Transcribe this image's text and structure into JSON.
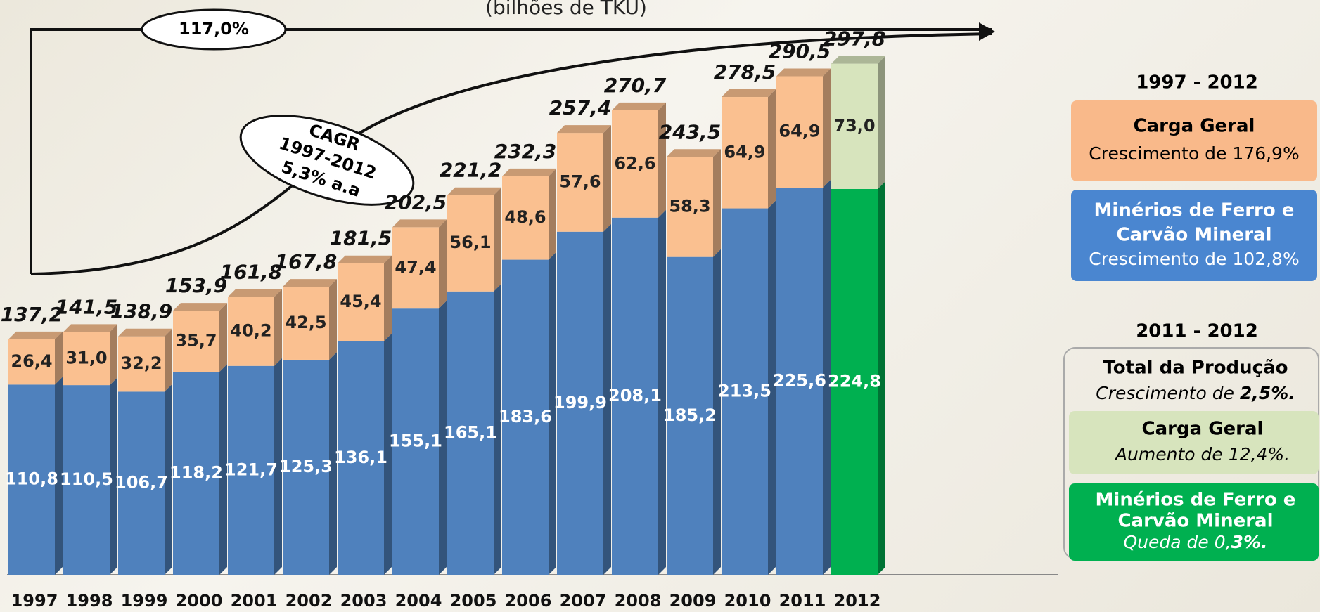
{
  "chart_data": {
    "type": "bar",
    "stacked": true,
    "subtitle": "(bilhões de TKU)",
    "categories": [
      "1997",
      "1998",
      "1999",
      "2000",
      "2001",
      "2002",
      "2003",
      "2004",
      "2005",
      "2006",
      "2007",
      "2008",
      "2009",
      "2010",
      "2011",
      "2012"
    ],
    "series": [
      {
        "colors": [
          "#4f81bd",
          "#4f81bd",
          "#4f81bd",
          "#4f81bd",
          "#4f81bd",
          "#4f81bd",
          "#4f81bd",
          "#4f81bd",
          "#4f81bd",
          "#4f81bd",
          "#4f81bd",
          "#4f81bd",
          "#4f81bd",
          "#4f81bd",
          "#4f81bd",
          "#00b050"
        ],
        "values": [
          110.8,
          110.5,
          106.7,
          118.2,
          121.7,
          125.3,
          136.1,
          155.1,
          165.1,
          183.6,
          199.9,
          208.1,
          185.2,
          213.5,
          225.6,
          224.8
        ],
        "value_labels": [
          "110,8",
          "110,5",
          "106,7",
          "118,2",
          "121,7",
          "125,3",
          "136,1",
          "155,1",
          "165,1",
          "183,6",
          "199,9",
          "208,1",
          "185,2",
          "213,5",
          "225,6",
          "224,8"
        ]
      },
      {
        "colors": [
          "#fac090",
          "#fac090",
          "#fac090",
          "#fac090",
          "#fac090",
          "#fac090",
          "#fac090",
          "#fac090",
          "#fac090",
          "#fac090",
          "#fac090",
          "#fac090",
          "#fac090",
          "#fac090",
          "#fac090",
          "#d7e4bd"
        ],
        "values": [
          26.4,
          31.0,
          32.2,
          35.7,
          40.2,
          42.5,
          45.4,
          47.4,
          56.1,
          48.6,
          57.6,
          62.6,
          58.3,
          64.9,
          64.9,
          73.0
        ],
        "value_labels": [
          "26,4",
          "31,0",
          "32,2",
          "35,7",
          "40,2",
          "42,5",
          "45,4",
          "47,4",
          "56,1",
          "48,6",
          "57,6",
          "62,6",
          "58,3",
          "64,9",
          "64,9",
          "73,0"
        ]
      }
    ],
    "total_labels": [
      "137,2",
      "141,5",
      "138,9",
      "153,9",
      "161,8",
      "167,8",
      "181,5",
      "202,5",
      "221,2",
      "232,3",
      "257,4",
      "270,7",
      "243,5",
      "278,5",
      "290,5",
      "297,8"
    ],
    "ylim": [
      0,
      330
    ],
    "annotations": [
      "117,0%",
      "CAGR",
      "1997-2012",
      "5,3% a.a"
    ]
  },
  "panels": [
    {
      "heading": "1997 - 2012"
    },
    {
      "title": "Carga Geral",
      "text": "Crescimento de 176,9%"
    },
    {
      "title": "Minérios de Ferro e",
      "title2": "Carvão Mineral",
      "text": "Crescimento de 102,8%"
    },
    {
      "heading": "2011 - 2012"
    },
    {
      "title": "Total da Produção",
      "text": "Crescimento de ",
      "strong": "2,5%."
    },
    {
      "title": "Carga Geral",
      "text": "Aumento de 12,4%."
    },
    {
      "title": "Minérios de Ferro e",
      "title2": "Carvão Mineral",
      "text": "Queda de 0,",
      "strong": "3%."
    }
  ]
}
